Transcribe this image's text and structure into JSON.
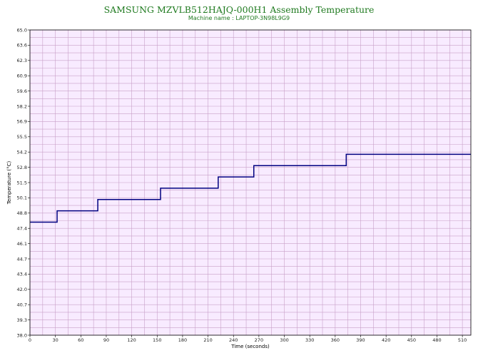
{
  "chart_data": {
    "type": "line",
    "title": "SAMSUNG MZVLB512HAJQ-000H1 Assembly Temperature",
    "subtitle": "Machine name : LAPTOP-3N98L9G9",
    "xlabel": "Time (seconds)",
    "ylabel": "Temperature (°C)",
    "xlim": [
      0,
      520
    ],
    "ylim": [
      38.0,
      65.0
    ],
    "x_ticks": [
      "0",
      "30",
      "60",
      "90",
      "120",
      "150",
      "180",
      "210",
      "240",
      "270",
      "300",
      "330",
      "360",
      "390",
      "420",
      "450",
      "480",
      "510"
    ],
    "y_ticks": [
      "65.0",
      "63.6",
      "62.3",
      "60.9",
      "59.6",
      "58.2",
      "56.9",
      "55.5",
      "54.2",
      "52.8",
      "51.5",
      "50.1",
      "48.8",
      "47.4",
      "46.1",
      "44.7",
      "43.4",
      "42.0",
      "40.7",
      "39.3",
      "38.0"
    ],
    "grid": true,
    "series": [
      {
        "step": true,
        "color": "#000080",
        "x": [
          0,
          32,
          32,
          80,
          80,
          154,
          154,
          222,
          222,
          264,
          264,
          373,
          373,
          520
        ],
        "y": [
          48.0,
          48.0,
          49.0,
          49.0,
          50.0,
          50.0,
          51.0,
          51.0,
          52.0,
          52.0,
          53.0,
          53.0,
          54.0,
          54.0
        ]
      }
    ],
    "plot_background": "#f8ebff",
    "grid_color": "#c8a0c8"
  }
}
